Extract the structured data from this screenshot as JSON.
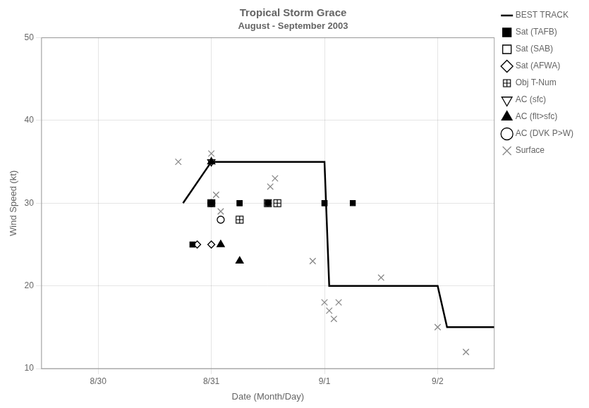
{
  "chart_data": {
    "type": "scatter",
    "title": "Tropical Storm Grace",
    "subtitle": "August - September 2003",
    "x_label": "Date (Month/Day)",
    "y_label": "Wind Speed (kt)",
    "xlim": [
      -0.5,
      3.5
    ],
    "xticks": [
      {
        "value": 0,
        "label": "8/30"
      },
      {
        "value": 1,
        "label": "8/31"
      },
      {
        "value": 2,
        "label": "9/1"
      },
      {
        "value": 3,
        "label": "9/2"
      }
    ],
    "ylim": [
      10,
      50
    ],
    "yticks": [
      10,
      20,
      30,
      40,
      50
    ],
    "grid": true,
    "legend": "upper right",
    "series": [
      {
        "name": "BEST TRACK",
        "type": "line",
        "line_style": "solid",
        "color": "#000000",
        "x": [
          0.75,
          1.0,
          2.0,
          2.0417,
          3.0,
          3.083,
          3.5
        ],
        "values": [
          30,
          35,
          35,
          20,
          20,
          15,
          15
        ]
      },
      {
        "name": "Sat (TAFB)",
        "marker": "square",
        "color": "#000000",
        "x": [
          0.833,
          1.0,
          1.25,
          1.5,
          2.0,
          2.25
        ],
        "values": [
          25,
          30,
          30,
          30,
          30,
          30
        ]
      },
      {
        "name": "Sat (SAB)",
        "marker": "square-open",
        "color": "#000000",
        "x": [
          1.0,
          1.25,
          1.5,
          2.0
        ],
        "values": [
          30,
          30,
          30,
          30
        ]
      },
      {
        "name": "Sat (AFWA)",
        "marker": "diamond-open",
        "color": "#000000",
        "x": [
          0.875,
          1.0
        ],
        "values": [
          25,
          25
        ]
      },
      {
        "name": "Obj T-Num",
        "marker": "square-plus",
        "color": "#000000",
        "x": [
          1.0,
          1.25,
          1.5,
          1.583
        ],
        "values": [
          30,
          28,
          30,
          30
        ]
      },
      {
        "name": "AC (sfc)",
        "marker": "triangle-down-open",
        "color": "#000000",
        "x": [
          1.0
        ],
        "values": [
          35
        ]
      },
      {
        "name": "AC (flt>sfc)",
        "marker": "triangle-up",
        "color": "#000000",
        "x": [
          1.0,
          1.083,
          1.25
        ],
        "values": [
          35,
          25,
          23
        ]
      },
      {
        "name": "AC (DVK P>W)",
        "marker": "circle-open",
        "color": "#000000",
        "x": [
          1.0,
          1.083
        ],
        "values": [
          30,
          28
        ]
      },
      {
        "name": "Surface",
        "marker": "x",
        "color": "#888888",
        "x": [
          0.708,
          1.0,
          1.042,
          1.083,
          1.521,
          1.563,
          1.896,
          2.0,
          2.042,
          2.083,
          2.125,
          2.5,
          3.0,
          3.25
        ],
        "values": [
          35,
          36,
          31,
          29,
          32,
          33,
          23,
          18,
          17,
          16,
          18,
          21,
          15,
          12
        ]
      }
    ]
  }
}
